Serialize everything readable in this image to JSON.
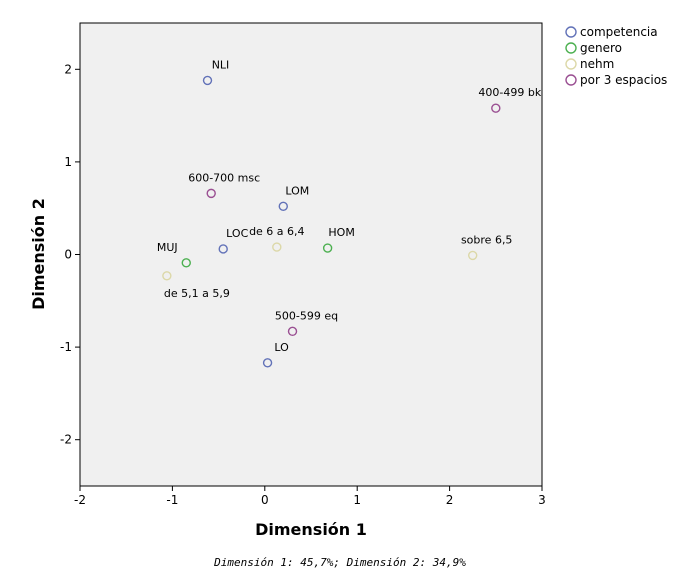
{
  "chart_data": {
    "type": "scatter",
    "xlabel": "Dimensión 1",
    "ylabel": "Dimensión 2",
    "xlim": [
      -2,
      3
    ],
    "ylim": [
      -2.5,
      2.5
    ],
    "xticks": [
      "-2",
      "-1",
      "0",
      "1",
      "2",
      "3"
    ],
    "yticks": [
      "2",
      "1",
      "0",
      "-1",
      "-2"
    ],
    "grid": false,
    "legend_position": "top-right outside",
    "series": [
      {
        "name": "competencia",
        "color": "#6272b8",
        "points": [
          {
            "label": "NLI",
            "x": -0.62,
            "y": 1.88
          },
          {
            "label": "LOM",
            "x": 0.2,
            "y": 0.52
          },
          {
            "label": "LOC",
            "x": -0.45,
            "y": 0.06
          },
          {
            "label": "LO",
            "x": 0.03,
            "y": -1.17
          }
        ]
      },
      {
        "name": "genero",
        "color": "#4cb050",
        "points": [
          {
            "label": "HOM",
            "x": 0.68,
            "y": 0.07
          },
          {
            "label": "MUJ",
            "x": -0.85,
            "y": -0.09
          }
        ]
      },
      {
        "name": "nehm",
        "color": "#dcd8a8",
        "points": [
          {
            "label": "de 6 a 6,4",
            "x": 0.13,
            "y": 0.08
          },
          {
            "label": "sobre 6,5",
            "x": 2.25,
            "y": -0.01
          },
          {
            "label": "de 5,1 a 5,9",
            "x": -1.06,
            "y": -0.23
          }
        ]
      },
      {
        "name": "por 3 espacios",
        "color": "#9a4f92",
        "points": [
          {
            "label": "400-499 bk",
            "x": 2.5,
            "y": 1.58
          },
          {
            "label": "600-700 msc",
            "x": -0.58,
            "y": 0.66
          },
          {
            "label": "500-599 eq",
            "x": 0.3,
            "y": -0.83
          }
        ]
      }
    ]
  },
  "caption": "Dimensión 1: 45,7%; Dimensión 2: 34,9%"
}
